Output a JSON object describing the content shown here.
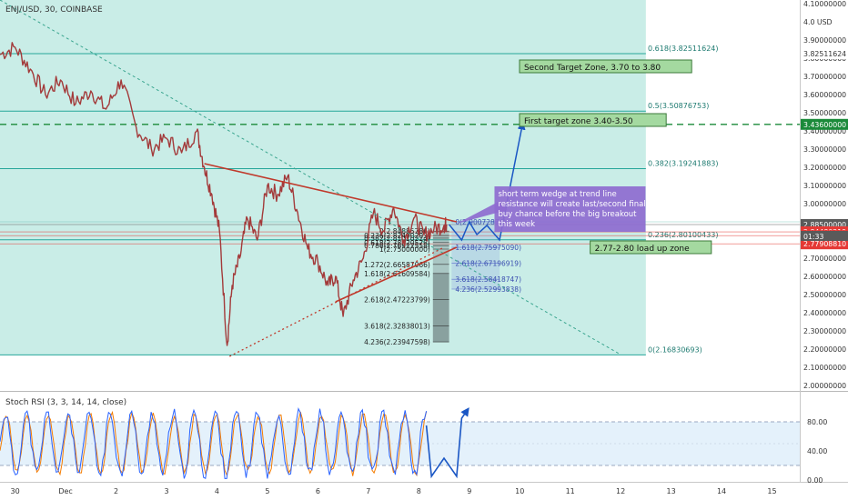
{
  "symbol_title": "ENJ/USD, 30, COINBASE",
  "currency": "USD",
  "colors": {
    "zone_fill": "#c6ece6",
    "fib_line": "#26a69a",
    "candle": "#a33a3a",
    "trend_red": "#c0392b",
    "path_blue": "#1a56c4",
    "target_dashed": "#1b8a3a",
    "label_green_bg": "#a4d9a0",
    "callout_purple": "#8e6bd0",
    "price_tag_gray": "#5a5a5a",
    "price_tag_red": "#e53935",
    "stoch_k": "#2962ff",
    "stoch_d": "#f57c00"
  },
  "chart_data": [
    {
      "type": "line",
      "title": "ENJ/USD, 30, COINBASE",
      "y_axis_labels": [
        "4.10000000",
        "4.00000000",
        "3.90000000",
        "3.80000000",
        "3.70000000",
        "3.60000000",
        "3.50000000",
        "3.40000000",
        "3.30000000",
        "3.20000000",
        "3.10000000",
        "3.00000000",
        "2.90000000",
        "2.80000000",
        "2.70000000",
        "2.60000000",
        "2.50000000",
        "2.40000000",
        "2.30000000",
        "2.20000000",
        "2.10000000",
        "2.00000000"
      ],
      "y_ticks": [
        4.1,
        4.0,
        3.9,
        3.8,
        3.7,
        3.6,
        3.5,
        3.4,
        3.3,
        3.2,
        3.1,
        3.0,
        2.9,
        2.8,
        2.7,
        2.6,
        2.5,
        2.4,
        2.3,
        2.2,
        2.1,
        2.0
      ],
      "ylim": [
        2.0,
        4.1
      ],
      "x_tick_labels": [
        "30",
        "Dec",
        "2",
        "3",
        "4",
        "5",
        "6",
        "7",
        "8",
        "9",
        "10",
        "11",
        "12",
        "13",
        "14",
        "15"
      ],
      "x_ticks": [
        0,
        1,
        2,
        3,
        4,
        5,
        6,
        7,
        8,
        9,
        10,
        11,
        12,
        13,
        14,
        15
      ],
      "xlim": [
        -0.3,
        15.55
      ],
      "grid": false,
      "price_path": {
        "x": [
          -0.3,
          0.0,
          0.3,
          0.6,
          0.9,
          1.2,
          1.5,
          1.8,
          2.1,
          2.4,
          2.7,
          3.0,
          3.3,
          3.6,
          3.75,
          3.9,
          4.05,
          4.2,
          4.3,
          4.45,
          4.6,
          4.8,
          5.0,
          5.2,
          5.4,
          5.6,
          5.8,
          6.0,
          6.2,
          6.35,
          6.5,
          6.7,
          6.9,
          7.1,
          7.3,
          7.5,
          7.7,
          7.9,
          8.1,
          8.3,
          8.5,
          8.55
        ],
        "y": [
          3.82,
          3.86,
          3.74,
          3.6,
          3.68,
          3.55,
          3.62,
          3.52,
          3.68,
          3.42,
          3.3,
          3.36,
          3.28,
          3.4,
          3.2,
          3.05,
          2.85,
          2.22,
          2.55,
          2.7,
          2.92,
          2.8,
          3.1,
          3.05,
          3.15,
          2.95,
          2.75,
          2.68,
          2.55,
          2.6,
          2.38,
          2.58,
          2.7,
          2.95,
          2.85,
          2.98,
          2.8,
          2.92,
          2.83,
          2.86,
          2.88,
          2.885
        ]
      },
      "fib_levels": [
        {
          "label": "0.618(3.82511624)",
          "value": 3.82511624
        },
        {
          "label": "0.5(3.50876753)",
          "value": 3.50876753
        },
        {
          "label": "0.382(3.19241883)",
          "value": 3.19241883
        },
        {
          "label": "0.236(2.80100433)",
          "value": 2.80100433
        },
        {
          "label": "0(2.16830693)",
          "value": 2.16830693
        }
      ],
      "fib_ext_left": [
        {
          "label": "0(2.84885786)",
          "value": 2.84885786
        },
        {
          "label": "0.236(2.82490203)",
          "value": 2.82490203
        },
        {
          "label": "0.382(2.81010224)",
          "value": 2.81010224
        },
        {
          "label": "0.618(2.78620578)",
          "value": 2.78620578
        },
        {
          "label": "0.786(2.76922558)",
          "value": 2.76922558
        },
        {
          "label": "1(2.75000000)",
          "value": 2.75
        },
        {
          "label": "1.272(2.66587066)",
          "value": 2.66587066
        },
        {
          "label": "1.618(2.61609584)",
          "value": 2.61609584
        },
        {
          "label": "2.618(2.47223799)",
          "value": 2.47223799
        },
        {
          "label": "3.618(2.32838013)",
          "value": 2.32838013
        },
        {
          "label": "4.236(2.23947598)",
          "value": 2.23947598
        }
      ],
      "fib_ext_right": [
        {
          "label": "0(2.90072874)",
          "value": 2.90072874
        },
        {
          "label": "1.618(2.75975090)",
          "value": 2.7597509
        },
        {
          "label": "2.618(2.67196919)",
          "value": 2.67196919
        },
        {
          "label": "3.618(2.58418747)",
          "value": 2.58418747
        },
        {
          "label": "4.236(2.52993838)",
          "value": 2.52993838
        }
      ],
      "target_dashed_value": 3.436,
      "wedge_upper": [
        [
          3.75,
          3.22
        ],
        [
          8.75,
          2.9
        ]
      ],
      "wedge_lower": [
        [
          6.35,
          2.46
        ],
        [
          8.75,
          2.76
        ]
      ],
      "support_dotted": [
        [
          4.25,
          2.16
        ],
        [
          8.5,
          2.76
        ]
      ],
      "downtrend_dotted": [
        [
          -0.3,
          4.12
        ],
        [
          12.0,
          2.17
        ]
      ],
      "projection_path": {
        "x": [
          8.6,
          8.85,
          9.0,
          9.15,
          9.35,
          9.6,
          10.05
        ],
        "y": [
          2.885,
          2.8,
          2.9,
          2.83,
          2.88,
          2.8,
          3.43
        ]
      },
      "annotations": [
        {
          "text": "Second Target Zone, 3.70 to 3.80",
          "x": 10.05,
          "y": 3.75
        },
        {
          "text": "First target zone 3.40-3.50",
          "x": 10.05,
          "y": 3.455
        },
        {
          "text": "2.77-2.80 load up zone",
          "x": 11.45,
          "y": 2.755
        }
      ],
      "callout_lines": [
        "short term wedge at trend line",
        "resistance will create last/second final",
        "buy chance before the big breakout",
        "this week"
      ],
      "price_tags": [
        {
          "label": "4.0  USD",
          "value": 4.0,
          "style": "plain"
        },
        {
          "label": "3.82511624",
          "value": 3.82511624,
          "style": "plain"
        },
        {
          "label": "3.43600000",
          "value": 3.436,
          "style": "green"
        },
        {
          "label": "2.88500000",
          "value": 2.885,
          "style": "gray"
        },
        {
          "label": "2.84480219",
          "value": 2.84480219,
          "style": "red"
        },
        {
          "label": "2.82400000",
          "value": 2.824,
          "style": "red"
        },
        {
          "label": "2.77908810",
          "value": 2.7790881,
          "style": "red"
        }
      ],
      "countdown": "01:33"
    },
    {
      "type": "line",
      "title": "Stoch RSI (3, 3, 14, 14, close)",
      "ylim": [
        0,
        100
      ],
      "y_tick_labels": [
        "80.00",
        "40.00",
        "0.00"
      ],
      "y_ticks": [
        80,
        40,
        0
      ],
      "band": [
        20,
        80
      ],
      "series": [
        {
          "name": "K",
          "color": "#2962ff",
          "values": []
        },
        {
          "name": "D",
          "color": "#f57c00",
          "values": []
        }
      ],
      "projection_path": {
        "x": [
          8.15,
          8.25,
          8.5,
          8.75,
          8.85,
          8.95
        ],
        "y": [
          75,
          5,
          30,
          5,
          85,
          95
        ]
      }
    }
  ]
}
